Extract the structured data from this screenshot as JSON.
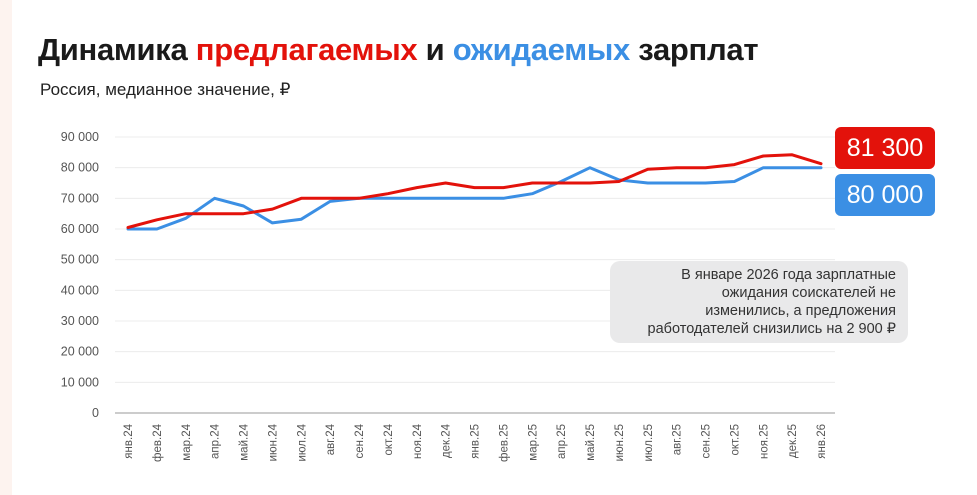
{
  "header": {
    "title_part1": "Динамика ",
    "title_offered": "предлагаемых",
    "title_part2": " и ",
    "title_expected": "ожидаемых",
    "title_part3": " зарплат",
    "subtitle": "Россия, медианное значение, ₽"
  },
  "colors": {
    "offered": "#e3120b",
    "expected": "#3b8fe4"
  },
  "badges": {
    "offered_last": "81 300",
    "expected_last": "80 000"
  },
  "note": {
    "lines": [
      "В январе 2026 года зарплатные",
      "ожидания соискателей не",
      "изменились, а предложения",
      "работодателей снизились на 2 900 ₽"
    ]
  },
  "chart_data": {
    "type": "line",
    "title": "Динамика предлагаемых и ожидаемых зарплат",
    "subtitle": "Россия, медианное значение, ₽",
    "categories": [
      "янв.24",
      "фев.24",
      "мар.24",
      "апр.24",
      "май.24",
      "июн.24",
      "июл.24",
      "авг.24",
      "сен.24",
      "окт.24",
      "ноя.24",
      "дек.24",
      "янв.25",
      "фев.25",
      "мар.25",
      "апр.25",
      "май.25",
      "июн.25",
      "июл.25",
      "авг.25",
      "сен.25",
      "окт.25",
      "ноя.25",
      "дек.25",
      "янв.26"
    ],
    "y_ticks": [
      "90 000",
      "80 000",
      "70 000",
      "60 000",
      "50 000",
      "40 000",
      "30 000",
      "20 000",
      "10 000",
      "0"
    ],
    "ylim": [
      0,
      90000
    ],
    "series": [
      {
        "name": "Предлагаемые зарплаты",
        "color": "#e3120b",
        "values": [
          60500,
          63000,
          65000,
          65000,
          65000,
          66500,
          70000,
          70000,
          70000,
          71500,
          73500,
          75000,
          73500,
          73500,
          75000,
          75000,
          75000,
          75500,
          79500,
          80000,
          80000,
          81000,
          83800,
          84200,
          81300
        ]
      },
      {
        "name": "Ожидаемые зарплаты",
        "color": "#3b8fe4",
        "values": [
          60000,
          60000,
          63500,
          70000,
          67500,
          62000,
          63200,
          69000,
          70000,
          70000,
          70000,
          70000,
          70000,
          70000,
          71500,
          75500,
          80000,
          76000,
          75000,
          75000,
          75000,
          75500,
          80000,
          80000,
          80000
        ]
      }
    ]
  }
}
